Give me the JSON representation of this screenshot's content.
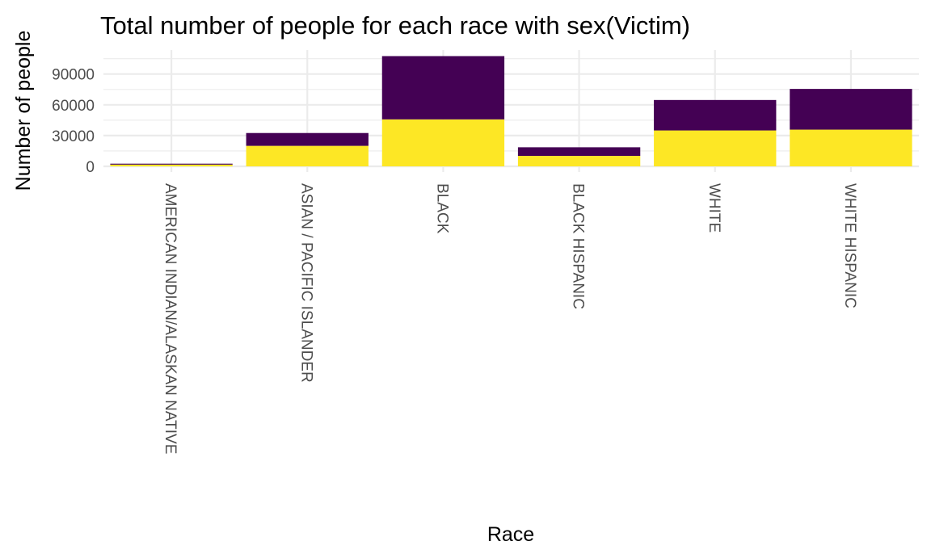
{
  "chart_data": {
    "type": "bar",
    "stacked": true,
    "title": "Total number of people for each race with sex(Victim)",
    "xlabel": "Race",
    "ylabel": "Number of people",
    "categories": [
      "AMERICAN INDIAN/ALASKAN NATIVE",
      "ASIAN / PACIFIC ISLANDER",
      "BLACK",
      "BLACK HISPANIC",
      "WHITE",
      "WHITE HISPANIC"
    ],
    "series": [
      {
        "color": "#fde725",
        "values": [
          1700,
          20000,
          45800,
          10200,
          35000,
          35800
        ]
      },
      {
        "color": "#440154",
        "values": [
          900,
          12500,
          61700,
          8400,
          29700,
          39700
        ]
      }
    ],
    "yticks": [
      0,
      30000,
      60000,
      90000
    ],
    "ytick_labels": [
      "0",
      "30000",
      "60000",
      "90000"
    ],
    "ylim": [
      0,
      110000
    ],
    "grid": true,
    "legend": "none"
  }
}
